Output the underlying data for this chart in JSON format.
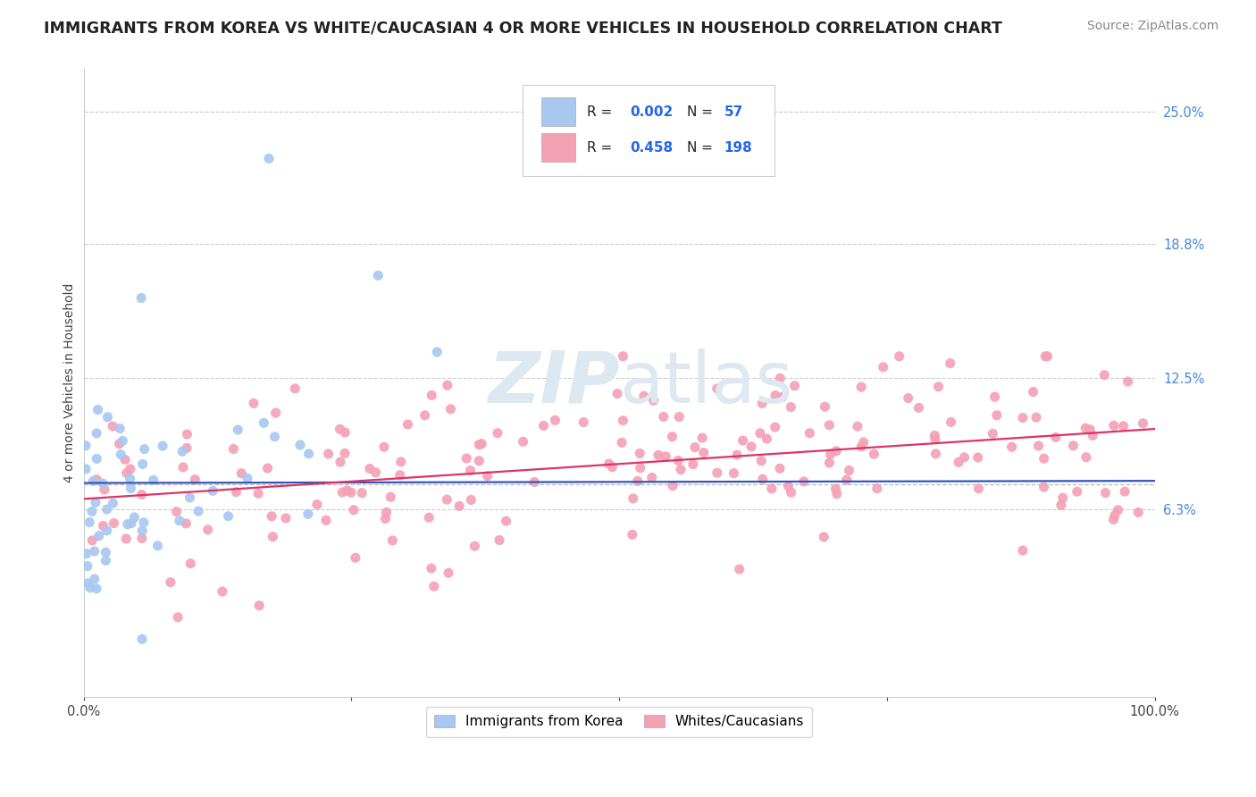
{
  "title": "IMMIGRANTS FROM KOREA VS WHITE/CAUCASIAN 4 OR MORE VEHICLES IN HOUSEHOLD CORRELATION CHART",
  "source": "Source: ZipAtlas.com",
  "ylabel": "4 or more Vehicles in Household",
  "xlim": [
    0.0,
    1.0
  ],
  "ylim": [
    -0.025,
    0.27
  ],
  "x_tick_positions": [
    0.0,
    0.25,
    0.5,
    0.75,
    1.0
  ],
  "x_tick_labels": [
    "0.0%",
    "",
    "",
    "",
    "100.0%"
  ],
  "y_ticks_right": [
    0.063,
    0.125,
    0.188,
    0.25
  ],
  "y_tick_labels_right": [
    "6.3%",
    "12.5%",
    "18.8%",
    "25.0%"
  ],
  "korea_R": "0.002",
  "korea_N": "57",
  "white_R": "0.458",
  "white_N": "198",
  "korea_color": "#a8c8f0",
  "white_color": "#f4a0b5",
  "korea_line_color": "#3355bb",
  "white_line_color": "#dd3366",
  "background_color": "#ffffff",
  "watermark_color": "#dde8f0",
  "legend_korea_label": "Immigrants from Korea",
  "legend_white_label": "Whites/Caucasians",
  "title_fontsize": 12.5,
  "source_fontsize": 10,
  "axis_label_fontsize": 10,
  "tick_fontsize": 10.5,
  "right_tick_color": "#4488dd"
}
